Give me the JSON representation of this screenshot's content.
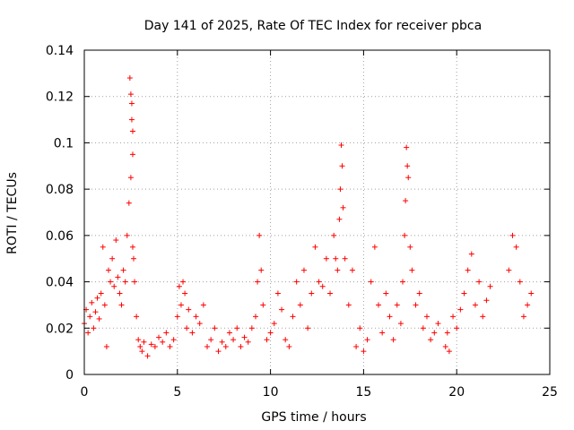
{
  "chart_data": {
    "type": "scatter",
    "title": "Day 141 of 2025, Rate Of TEC Index for receiver pbca",
    "xlabel": "GPS time / hours",
    "ylabel": "ROTI / TECUs",
    "xlim": [
      0,
      25
    ],
    "ylim": [
      0,
      0.14
    ],
    "xticks": [
      "0",
      "5",
      "10",
      "15",
      "20",
      "25"
    ],
    "yticks": [
      "0",
      "0.02",
      "0.04",
      "0.06",
      "0.08",
      "0.1",
      "0.12",
      "0.14"
    ],
    "grid": true,
    "marker": "+",
    "color": "#ff0000",
    "series": [
      {
        "x": [
          0.0,
          0.1,
          0.2,
          0.3,
          0.4,
          0.5,
          0.6,
          0.7,
          0.8,
          0.9,
          1.0,
          1.1,
          1.2,
          1.3,
          1.4,
          1.5,
          1.6,
          1.7,
          1.8,
          1.9,
          2.0,
          2.1,
          2.2,
          2.3,
          2.4,
          2.45,
          2.5,
          2.5,
          2.55,
          2.55,
          2.6,
          2.6,
          2.6,
          2.65,
          2.7,
          2.8,
          2.9,
          3.0,
          3.1,
          3.2,
          3.4,
          3.6,
          3.8,
          4.0,
          4.2,
          4.4,
          4.6,
          4.8,
          5.0,
          5.1,
          5.2,
          5.3,
          5.4,
          5.5,
          5.6,
          5.8,
          6.0,
          6.2,
          6.4,
          6.6,
          6.8,
          7.0,
          7.2,
          7.4,
          7.6,
          7.8,
          8.0,
          8.2,
          8.4,
          8.6,
          8.8,
          9.0,
          9.2,
          9.3,
          9.4,
          9.5,
          9.6,
          9.8,
          10.0,
          10.2,
          10.4,
          10.6,
          10.8,
          11.0,
          11.2,
          11.4,
          11.6,
          11.8,
          12.0,
          12.2,
          12.4,
          12.6,
          12.8,
          13.0,
          13.2,
          13.4,
          13.5,
          13.6,
          13.7,
          13.75,
          13.8,
          13.85,
          13.9,
          14.0,
          14.2,
          14.4,
          14.6,
          14.8,
          15.0,
          15.2,
          15.4,
          15.6,
          15.8,
          16.0,
          16.2,
          16.4,
          16.6,
          16.8,
          17.0,
          17.1,
          17.2,
          17.25,
          17.3,
          17.35,
          17.4,
          17.5,
          17.6,
          17.8,
          18.0,
          18.2,
          18.4,
          18.6,
          18.8,
          19.0,
          19.4,
          19.5,
          19.6,
          19.8,
          20.0,
          20.2,
          20.4,
          20.6,
          20.8,
          21.0,
          21.2,
          21.4,
          21.6,
          21.8,
          22.8,
          23.0,
          23.2,
          23.4,
          23.6,
          23.8,
          24.0
        ],
        "y": [
          0.022,
          0.028,
          0.018,
          0.025,
          0.031,
          0.02,
          0.027,
          0.033,
          0.024,
          0.035,
          0.055,
          0.03,
          0.012,
          0.045,
          0.04,
          0.05,
          0.038,
          0.058,
          0.042,
          0.035,
          0.03,
          0.045,
          0.04,
          0.06,
          0.074,
          0.128,
          0.121,
          0.085,
          0.117,
          0.11,
          0.105,
          0.095,
          0.055,
          0.05,
          0.04,
          0.025,
          0.015,
          0.012,
          0.01,
          0.014,
          0.008,
          0.013,
          0.012,
          0.016,
          0.014,
          0.018,
          0.012,
          0.015,
          0.025,
          0.038,
          0.03,
          0.04,
          0.035,
          0.02,
          0.028,
          0.018,
          0.025,
          0.022,
          0.03,
          0.012,
          0.015,
          0.02,
          0.01,
          0.014,
          0.012,
          0.018,
          0.015,
          0.02,
          0.012,
          0.016,
          0.014,
          0.02,
          0.025,
          0.04,
          0.06,
          0.045,
          0.03,
          0.015,
          0.018,
          0.022,
          0.035,
          0.028,
          0.015,
          0.012,
          0.025,
          0.04,
          0.03,
          0.045,
          0.02,
          0.035,
          0.055,
          0.04,
          0.038,
          0.05,
          0.035,
          0.06,
          0.05,
          0.045,
          0.067,
          0.08,
          0.099,
          0.09,
          0.072,
          0.05,
          0.03,
          0.045,
          0.012,
          0.02,
          0.01,
          0.015,
          0.04,
          0.055,
          0.03,
          0.018,
          0.035,
          0.025,
          0.015,
          0.03,
          0.022,
          0.04,
          0.06,
          0.075,
          0.098,
          0.09,
          0.085,
          0.055,
          0.045,
          0.03,
          0.035,
          0.02,
          0.025,
          0.015,
          0.018,
          0.022,
          0.012,
          0.018,
          0.01,
          0.025,
          0.02,
          0.028,
          0.035,
          0.045,
          0.052,
          0.03,
          0.04,
          0.025,
          0.032,
          0.038,
          0.045,
          0.06,
          0.055,
          0.04,
          0.025,
          0.03,
          0.035
        ]
      }
    ]
  }
}
